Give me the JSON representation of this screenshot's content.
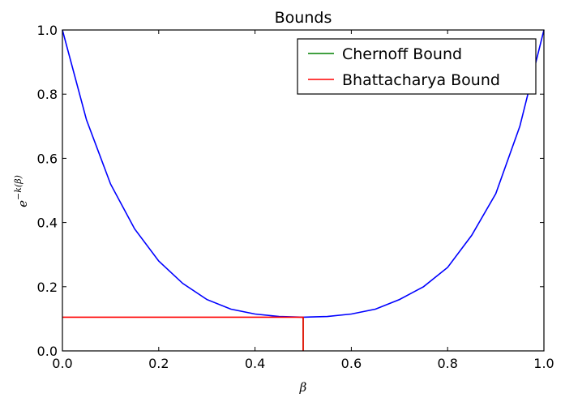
{
  "chart_data": {
    "type": "line",
    "title": "Bounds",
    "xlabel": "β",
    "ylabel": "e^{-k(β)}",
    "ylabel_base": "e",
    "ylabel_exponent": "−k(β)",
    "xlim": [
      0.0,
      1.0
    ],
    "ylim": [
      0.0,
      1.0
    ],
    "x_ticks": [
      "0.0",
      "0.2",
      "0.4",
      "0.6",
      "0.8",
      "1.0"
    ],
    "y_ticks": [
      "0.0",
      "0.2",
      "0.4",
      "0.6",
      "0.8",
      "1.0"
    ],
    "grid": false,
    "legend_position": "top-right",
    "series": [
      {
        "name": "Chernoff Bound",
        "color": "#008000",
        "x": [
          0.5,
          0.5
        ],
        "y": [
          0.0,
          0.105
        ]
      },
      {
        "name": "Bhattacharya Bound",
        "color": "#ff0000",
        "x": [
          0.0,
          0.5,
          0.5
        ],
        "y": [
          0.105,
          0.105,
          0.0
        ]
      }
    ],
    "curve": {
      "color": "#0000ff",
      "x": [
        0.0,
        0.05,
        0.1,
        0.15,
        0.2,
        0.25,
        0.3,
        0.35,
        0.4,
        0.45,
        0.5,
        0.55,
        0.6,
        0.65,
        0.7,
        0.75,
        0.8,
        0.85,
        0.9,
        0.95,
        1.0
      ],
      "y": [
        1.0,
        0.72,
        0.52,
        0.38,
        0.28,
        0.21,
        0.16,
        0.13,
        0.115,
        0.107,
        0.105,
        0.107,
        0.115,
        0.13,
        0.16,
        0.2,
        0.26,
        0.36,
        0.49,
        0.7,
        1.0
      ]
    }
  }
}
